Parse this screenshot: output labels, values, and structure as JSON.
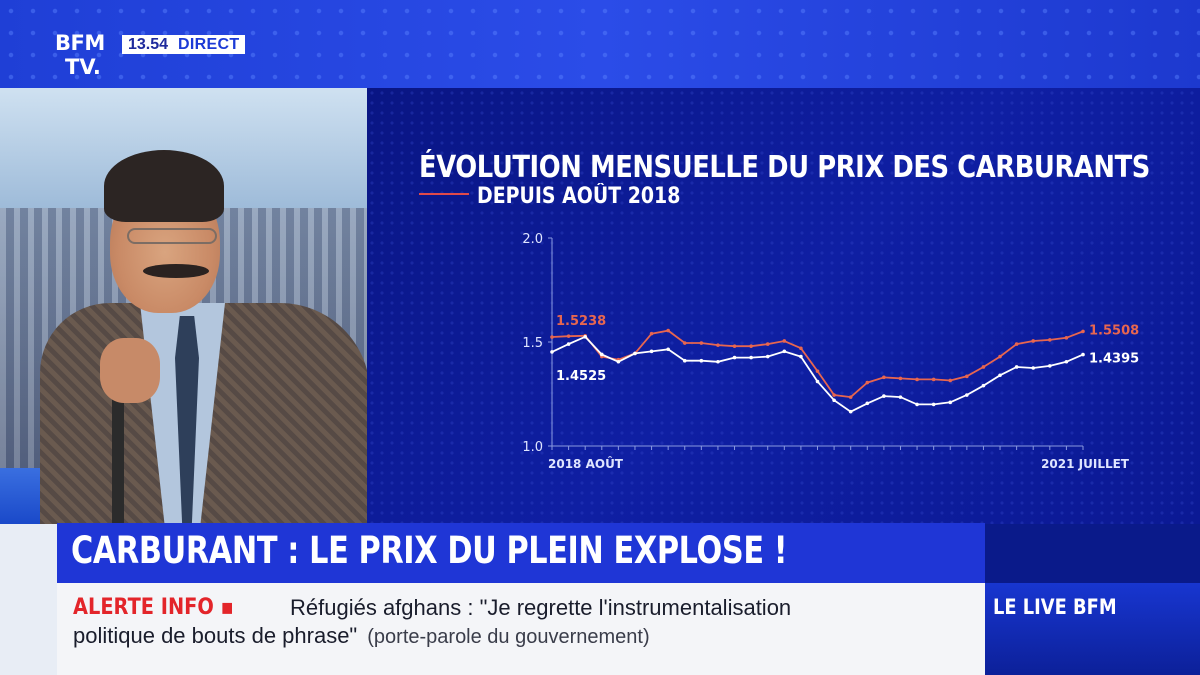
{
  "channel": {
    "logo_line1": "BFM",
    "logo_line2": "TV.",
    "time": "13.54",
    "live_badge": "DIRECT"
  },
  "chart_data": {
    "type": "line",
    "title": "ÉVOLUTION MENSUELLE DU PRIX DES CARBURANTS",
    "subtitle": "DEPUIS AOÛT 2018",
    "ylim": [
      1.0,
      2.0
    ],
    "yticks": [
      "2.0",
      "1.5",
      "1.0"
    ],
    "x_start_label": "2018 AOÛT",
    "x_end_label": "2021 JUILLET",
    "grid": false,
    "series": [
      {
        "color": "#e8664f",
        "start_label": "1.5238",
        "end_label": "1.5508",
        "values": [
          1.5238,
          1.528,
          1.53,
          1.43,
          1.415,
          1.445,
          1.54,
          1.555,
          1.495,
          1.495,
          1.485,
          1.48,
          1.48,
          1.49,
          1.505,
          1.47,
          1.36,
          1.245,
          1.235,
          1.305,
          1.33,
          1.325,
          1.32,
          1.32,
          1.315,
          1.335,
          1.38,
          1.43,
          1.49,
          1.505,
          1.51,
          1.52,
          1.5508
        ]
      },
      {
        "color": "#ffffff",
        "start_label": "1.4525",
        "end_label": "1.4395",
        "values": [
          1.4525,
          1.49,
          1.525,
          1.44,
          1.405,
          1.445,
          1.455,
          1.465,
          1.41,
          1.41,
          1.405,
          1.425,
          1.425,
          1.43,
          1.455,
          1.43,
          1.31,
          1.22,
          1.165,
          1.205,
          1.24,
          1.235,
          1.2,
          1.2,
          1.21,
          1.245,
          1.29,
          1.34,
          1.38,
          1.375,
          1.385,
          1.405,
          1.4395
        ]
      }
    ]
  },
  "headline": {
    "text": "CARBURANT : LE PRIX DU PLEIN EXPLOSE !"
  },
  "ticker": {
    "label": "ALERTE INFO ▪",
    "line1": "Réfugiés afghans : \"Je regrette l'instrumentalisation",
    "line2": "politique de bouts de phrase\"",
    "line2_paren": "(porte-parole du gouvernement)"
  },
  "live": {
    "text": "LE LIVE BFM"
  }
}
